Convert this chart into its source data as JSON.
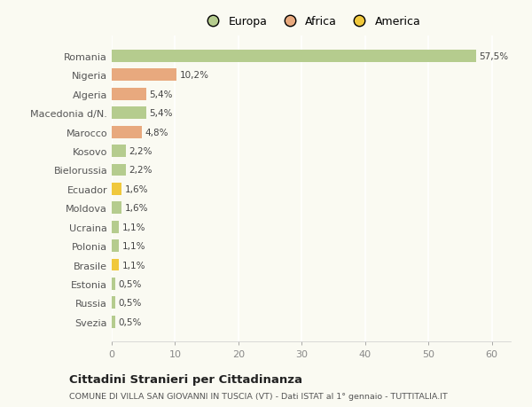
{
  "categories": [
    "Romania",
    "Nigeria",
    "Algeria",
    "Macedonia d/N.",
    "Marocco",
    "Kosovo",
    "Bielorussia",
    "Ecuador",
    "Moldova",
    "Ucraina",
    "Polonia",
    "Brasile",
    "Estonia",
    "Russia",
    "Svezia"
  ],
  "values": [
    57.5,
    10.2,
    5.4,
    5.4,
    4.8,
    2.2,
    2.2,
    1.6,
    1.6,
    1.1,
    1.1,
    1.1,
    0.5,
    0.5,
    0.5
  ],
  "labels": [
    "57,5%",
    "10,2%",
    "5,4%",
    "5,4%",
    "4,8%",
    "2,2%",
    "2,2%",
    "1,6%",
    "1,6%",
    "1,1%",
    "1,1%",
    "1,1%",
    "0,5%",
    "0,5%",
    "0,5%"
  ],
  "colors": [
    "#b5cc8e",
    "#e8a97e",
    "#e8a97e",
    "#b5cc8e",
    "#e8a97e",
    "#b5cc8e",
    "#b5cc8e",
    "#f0c83c",
    "#b5cc8e",
    "#b5cc8e",
    "#b5cc8e",
    "#f0c83c",
    "#b5cc8e",
    "#b5cc8e",
    "#b5cc8e"
  ],
  "legend_labels": [
    "Europa",
    "Africa",
    "America"
  ],
  "legend_colors": [
    "#b5cc8e",
    "#e8a97e",
    "#f0c83c"
  ],
  "xlim": [
    0,
    63
  ],
  "xticks": [
    0,
    10,
    20,
    30,
    40,
    50,
    60
  ],
  "title1": "Cittadini Stranieri per Cittadinanza",
  "title2": "COMUNE DI VILLA SAN GIOVANNI IN TUSCIA (VT) - Dati ISTAT al 1° gennaio - TUTTITALIA.IT",
  "background_color": "#fafaf2",
  "grid_color": "#ffffff",
  "bar_edgecolor": "none",
  "bar_height": 0.65
}
